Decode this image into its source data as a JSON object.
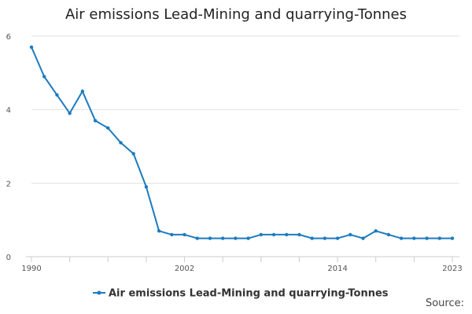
{
  "chart_data": {
    "type": "line",
    "title": "Air emissions Lead-Mining and quarrying-Tonnes",
    "xlabel": "",
    "ylabel": "",
    "x": [
      1990,
      1991,
      1992,
      1993,
      1994,
      1995,
      1996,
      1997,
      1998,
      1999,
      2000,
      2001,
      2002,
      2003,
      2004,
      2005,
      2006,
      2007,
      2008,
      2009,
      2010,
      2011,
      2012,
      2013,
      2014,
      2015,
      2016,
      2017,
      2018,
      2019,
      2020,
      2021,
      2022,
      2023
    ],
    "series": [
      {
        "name": "Air emissions Lead-Mining and quarrying-Tonnes",
        "color": "#1b7bbf",
        "values": [
          5.7,
          4.9,
          4.4,
          3.9,
          4.5,
          3.7,
          3.5,
          3.1,
          2.8,
          1.9,
          0.7,
          0.6,
          0.6,
          0.5,
          0.5,
          0.5,
          0.5,
          0.5,
          0.6,
          0.6,
          0.6,
          0.6,
          0.5,
          0.5,
          0.5,
          0.6,
          0.5,
          0.7,
          0.6,
          0.5,
          0.5,
          0.5,
          0.5,
          0.5
        ]
      }
    ],
    "ylim": [
      0,
      6
    ],
    "yticks": [
      0,
      2,
      4,
      6
    ],
    "xlim": [
      1990,
      2023
    ],
    "xtick_labels": [
      1990,
      2002,
      2014,
      2023
    ],
    "grid": "horizontal",
    "legend_position": "bottom"
  },
  "source_label": "Source:"
}
